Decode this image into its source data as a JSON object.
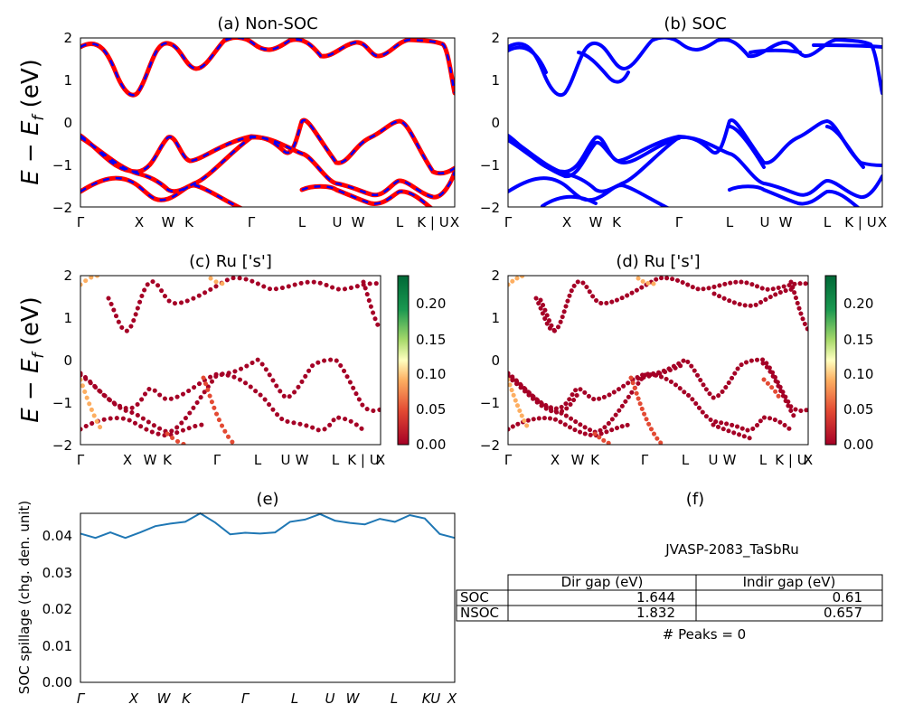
{
  "chart_data": [
    {
      "panel": "a",
      "type": "line",
      "title": "(a) Non-SOC",
      "ylabel": "E - E_f (eV)",
      "ylim": [
        -2,
        2
      ],
      "yticks": [
        "2",
        "1",
        "0",
        "−1",
        "−2"
      ],
      "kpath_labels": [
        "Γ",
        "X",
        "W",
        "K",
        "Γ",
        "L",
        "U",
        "W",
        "L",
        "K | U",
        "X"
      ],
      "series": [
        {
          "color": "#ff0000",
          "style": "solid thick"
        },
        {
          "color": "#0000ff",
          "style": "dashed"
        }
      ]
    },
    {
      "panel": "b",
      "type": "line",
      "title": "(b) SOC",
      "ylim": [
        -2,
        2
      ],
      "yticks": [
        "2",
        "1",
        "0",
        "−1",
        "−2"
      ],
      "kpath_labels": [
        "Γ",
        "X",
        "W",
        "K",
        "Γ",
        "L",
        "U",
        "W",
        "L",
        "K | U",
        "X"
      ],
      "series": [
        {
          "color": "#0000ff",
          "style": "solid thick"
        }
      ]
    },
    {
      "panel": "c",
      "type": "scatter",
      "title": "(c)  Ru ['s']",
      "ylabel": "E - E_f (eV)",
      "ylim": [
        -2,
        2
      ],
      "yticks": [
        "2",
        "1",
        "0",
        "−1",
        "−2"
      ],
      "kpath_labels": [
        "Γ",
        "X",
        "W",
        "K",
        "Γ",
        "L",
        "U",
        "W",
        "L",
        "K | U",
        "X"
      ],
      "colorbar": {
        "ticks": [
          "0.20",
          "0.15",
          "0.10",
          "0.05",
          "0.00"
        ],
        "range": [
          0,
          0.235
        ],
        "colormap": "RdYlGn"
      }
    },
    {
      "panel": "d",
      "type": "scatter",
      "title": "(d) Ru ['s']",
      "ylim": [
        -2,
        2
      ],
      "yticks": [
        "2",
        "1",
        "0",
        "−1",
        "−2"
      ],
      "kpath_labels": [
        "Γ",
        "X",
        "W",
        "K",
        "Γ",
        "L",
        "U",
        "W",
        "L",
        "K | U",
        "X"
      ],
      "colorbar": {
        "ticks": [
          "0.20",
          "0.15",
          "0.10",
          "0.05",
          "0.00"
        ],
        "range": [
          0,
          0.235
        ],
        "colormap": "RdYlGn"
      }
    },
    {
      "panel": "e",
      "type": "line",
      "title": "(e)",
      "ylabel": "SOC spillage (chg. den. unit)",
      "ylim": [
        0,
        0.046
      ],
      "yticks": [
        "0.04",
        "0.03",
        "0.02",
        "0.01",
        "0.00"
      ],
      "kpath_labels": [
        "Γ",
        "X",
        "W",
        "K",
        "Γ",
        "L",
        "U",
        "W",
        "L",
        "KU",
        "X"
      ],
      "series": [
        {
          "color": "#1f77b4",
          "y": [
            0.0405,
            0.0393,
            0.0408,
            0.0393,
            0.0408,
            0.0425,
            0.0432,
            0.0437,
            0.046,
            0.0435,
            0.0403,
            0.0407,
            0.0405,
            0.0408,
            0.0437,
            0.0443,
            0.0458,
            0.044,
            0.0434,
            0.043,
            0.0445,
            0.0437,
            0.0455,
            0.0446,
            0.0404,
            0.0393
          ]
        }
      ]
    },
    {
      "panel": "f",
      "type": "table",
      "title": "(f)",
      "caption": "JVASP-2083_TaSbRu",
      "columns": [
        "Dir gap (eV)",
        "Indir gap (eV)"
      ],
      "rows": [
        {
          "label": "SOC",
          "values": [
            "1.644",
            "0.61"
          ]
        },
        {
          "label": "NSOC",
          "values": [
            "1.832",
            "0.657"
          ]
        }
      ],
      "note": "# Peaks = 0"
    }
  ]
}
